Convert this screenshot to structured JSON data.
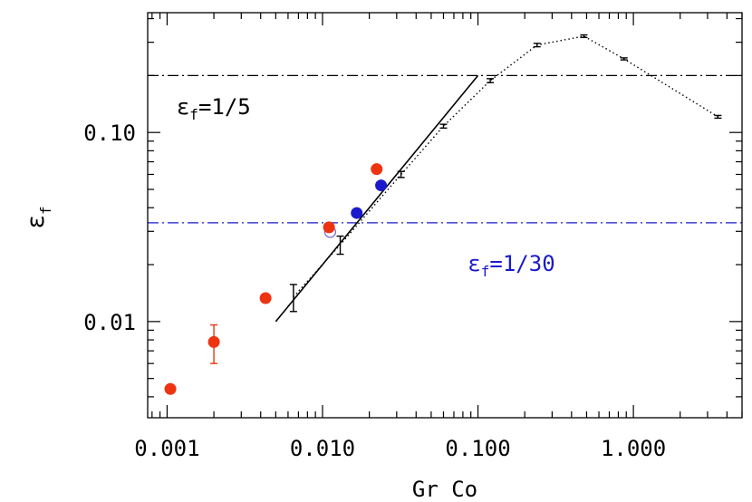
{
  "chart_data": {
    "type": "scatter",
    "xlabel": "Gr Co",
    "ylabel_main": "ε",
    "ylabel_sub": "f",
    "xscale": "log",
    "yscale": "log",
    "xlim": [
      0.00075,
      5.0
    ],
    "ylim": [
      0.0031,
      0.43
    ],
    "grid": false,
    "x_ticks": [
      {
        "value": 0.001,
        "label": "0.001"
      },
      {
        "value": 0.01,
        "label": "0.010"
      },
      {
        "value": 0.1,
        "label": "0.100"
      },
      {
        "value": 1.0,
        "label": "1.000"
      }
    ],
    "y_ticks": [
      {
        "value": 0.01,
        "label": "0.01"
      },
      {
        "value": 0.1,
        "label": "0.10"
      }
    ],
    "reference_lines": [
      {
        "y": 0.2,
        "color": "#000000",
        "label_main": "ε",
        "label_sub": "f",
        "label_text": "=1/5",
        "label_x": 0.00115,
        "label_y": 0.125
      },
      {
        "y": 0.0333,
        "color": "#1a1acc",
        "label_main": "ε",
        "label_sub": "f",
        "label_text": "=1/30",
        "label_x": 0.086,
        "label_y": 0.0185
      }
    ],
    "fit_line": {
      "x": [
        0.005,
        0.1
      ],
      "y": [
        0.01,
        0.2
      ],
      "color": "#000000"
    },
    "dotted_series": {
      "color": "#000000",
      "points": [
        {
          "x": 0.0065,
          "y": 0.0135,
          "err": 0.0022
        },
        {
          "x": 0.013,
          "y": 0.0255,
          "err": 0.0028
        },
        {
          "x": 0.032,
          "y": 0.06,
          "err": 0.0022
        },
        {
          "x": 0.06,
          "y": 0.108,
          "err": 0.0025
        },
        {
          "x": 0.12,
          "y": 0.188,
          "err": 0.0045
        },
        {
          "x": 0.24,
          "y": 0.29,
          "err": 0.006
        },
        {
          "x": 0.48,
          "y": 0.323,
          "err": 0.005
        },
        {
          "x": 0.87,
          "y": 0.245,
          "err": 0.003
        },
        {
          "x": 3.5,
          "y": 0.121,
          "err": 0.002
        }
      ]
    },
    "red_points": {
      "color": "#ee3311",
      "points": [
        {
          "x": 0.00105,
          "y": 0.0044
        },
        {
          "x": 0.002,
          "y": 0.0078,
          "err": 0.0018
        },
        {
          "x": 0.0043,
          "y": 0.0133
        },
        {
          "x": 0.011,
          "y": 0.0315
        },
        {
          "x": 0.0223,
          "y": 0.064
        }
      ]
    },
    "blue_points": {
      "color": "#1a1acc",
      "points": [
        {
          "x": 0.0166,
          "y": 0.0375
        },
        {
          "x": 0.0238,
          "y": 0.0525
        }
      ]
    },
    "open_points": {
      "color": "#7a6bd6",
      "points": [
        {
          "x": 0.0112,
          "y": 0.0298
        }
      ]
    }
  }
}
